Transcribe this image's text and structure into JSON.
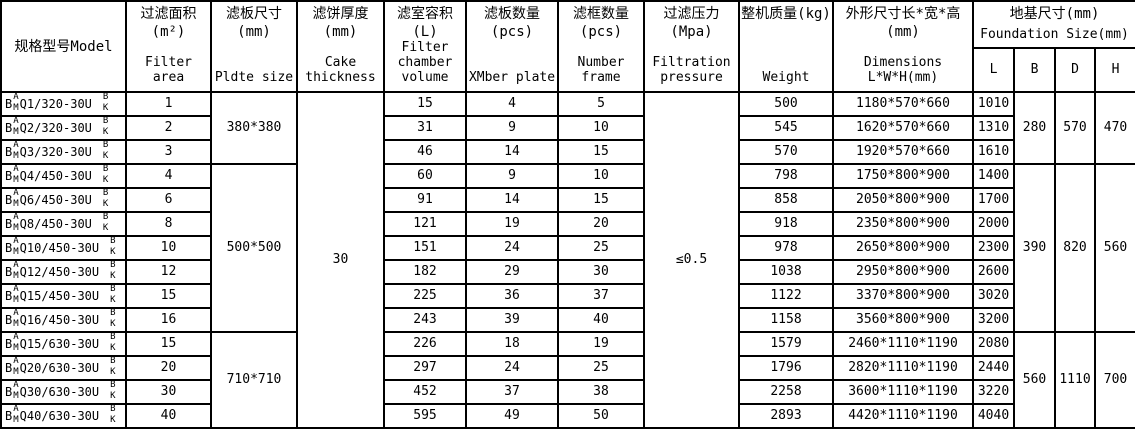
{
  "colors": {
    "border": "#000000",
    "background": "#ffffff",
    "text": "#000000"
  },
  "table": {
    "header": {
      "model_label": "规格型号Model",
      "cols": [
        {
          "zh": "过滤面积(m²)",
          "en": "Filter area"
        },
        {
          "zh": "滤板尺寸(mm)",
          "en": "Pldte size"
        },
        {
          "zh": "滤饼厚度(mm)",
          "en": "Cake thickness"
        },
        {
          "zh": "滤室容积(L)",
          "en": "Filter chamber volume"
        },
        {
          "zh": "滤板数量(pcs)",
          "en": "XMber plate"
        },
        {
          "zh": "滤框数量(pcs)",
          "en": "Number frame"
        },
        {
          "zh": "过滤压力(Mpa)",
          "en": "Filtration pressure"
        },
        {
          "zh": "整机质量(kg)",
          "en": "Weight"
        },
        {
          "zh": "外形尺寸长*宽*高(mm)",
          "en": "Dimensions L*W*H(mm)"
        }
      ],
      "foundation": {
        "zh": "地基尺寸(mm)",
        "en": "Foundation Size(mm)",
        "subcols": [
          "L",
          "B",
          "D",
          "H"
        ]
      }
    },
    "merged_cells": {
      "plate_size_groups": [
        {
          "start": 0,
          "span": 3,
          "value": "380*380"
        },
        {
          "start": 3,
          "span": 7,
          "value": "500*500"
        },
        {
          "start": 10,
          "span": 4,
          "value": "710*710"
        }
      ],
      "cake_thickness": {
        "start": 0,
        "span": 14,
        "value": "30"
      },
      "pressure": {
        "start": 0,
        "span": 14,
        "value": "≤0.5"
      },
      "foundation_groups": [
        {
          "start": 0,
          "span": 3,
          "B": "280",
          "D": "570",
          "H": "470"
        },
        {
          "start": 3,
          "span": 7,
          "B": "390",
          "D": "820",
          "H": "560"
        },
        {
          "start": 10,
          "span": 4,
          "B": "560",
          "D": "1110",
          "H": "700"
        }
      ]
    },
    "rows": [
      {
        "prefix": "B",
        "opts1": [
          "A",
          "M"
        ],
        "code": "Q1/320-30U",
        "opts2": [
          "B",
          "K"
        ],
        "area": "1",
        "volume": "15",
        "plates": "4",
        "frames": "5",
        "weight": "500",
        "dims": "1180*570*660",
        "L": "1010"
      },
      {
        "prefix": "B",
        "opts1": [
          "A",
          "M"
        ],
        "code": "Q2/320-30U",
        "opts2": [
          "B",
          "K"
        ],
        "area": "2",
        "volume": "31",
        "plates": "9",
        "frames": "10",
        "weight": "545",
        "dims": "1620*570*660",
        "L": "1310"
      },
      {
        "prefix": "B",
        "opts1": [
          "A",
          "M"
        ],
        "code": "Q3/320-30U",
        "opts2": [
          "B",
          "K"
        ],
        "area": "3",
        "volume": "46",
        "plates": "14",
        "frames": "15",
        "weight": "570",
        "dims": "1920*570*660",
        "L": "1610"
      },
      {
        "prefix": "B",
        "opts1": [
          "A",
          "M"
        ],
        "code": "Q4/450-30U",
        "opts2": [
          "B",
          "K"
        ],
        "area": "4",
        "volume": "60",
        "plates": "9",
        "frames": "10",
        "weight": "798",
        "dims": "1750*800*900",
        "L": "1400"
      },
      {
        "prefix": "B",
        "opts1": [
          "A",
          "M"
        ],
        "code": "Q6/450-30U",
        "opts2": [
          "B",
          "K"
        ],
        "area": "6",
        "volume": "91",
        "plates": "14",
        "frames": "15",
        "weight": "858",
        "dims": "2050*800*900",
        "L": "1700"
      },
      {
        "prefix": "B",
        "opts1": [
          "A",
          "M"
        ],
        "code": "Q8/450-30U",
        "opts2": [
          "B",
          "K"
        ],
        "area": "8",
        "volume": "121",
        "plates": "19",
        "frames": "20",
        "weight": "918",
        "dims": "2350*800*900",
        "L": "2000"
      },
      {
        "prefix": "B",
        "opts1": [
          "A",
          "M"
        ],
        "code": "Q10/450-30U",
        "opts2": [
          "B",
          "K"
        ],
        "area": "10",
        "volume": "151",
        "plates": "24",
        "frames": "25",
        "weight": "978",
        "dims": "2650*800*900",
        "L": "2300"
      },
      {
        "prefix": "B",
        "opts1": [
          "A",
          "M"
        ],
        "code": "Q12/450-30U",
        "opts2": [
          "B",
          "K"
        ],
        "area": "12",
        "volume": "182",
        "plates": "29",
        "frames": "30",
        "weight": "1038",
        "dims": "2950*800*900",
        "L": "2600"
      },
      {
        "prefix": "B",
        "opts1": [
          "A",
          "M"
        ],
        "code": "Q15/450-30U",
        "opts2": [
          "B",
          "K"
        ],
        "area": "15",
        "volume": "225",
        "plates": "36",
        "frames": "37",
        "weight": "1122",
        "dims": "3370*800*900",
        "L": "3020"
      },
      {
        "prefix": "B",
        "opts1": [
          "A",
          "M"
        ],
        "code": "Q16/450-30U",
        "opts2": [
          "B",
          "K"
        ],
        "area": "16",
        "volume": "243",
        "plates": "39",
        "frames": "40",
        "weight": "1158",
        "dims": "3560*800*900",
        "L": "3200"
      },
      {
        "prefix": "B",
        "opts1": [
          "A",
          "M"
        ],
        "code": "Q15/630-30U",
        "opts2": [
          "B",
          "K"
        ],
        "area": "15",
        "volume": "226",
        "plates": "18",
        "frames": "19",
        "weight": "1579",
        "dims": "2460*1110*1190",
        "L": "2080"
      },
      {
        "prefix": "B",
        "opts1": [
          "A",
          "M"
        ],
        "code": "Q20/630-30U",
        "opts2": [
          "B",
          "K"
        ],
        "area": "20",
        "volume": "297",
        "plates": "24",
        "frames": "25",
        "weight": "1796",
        "dims": "2820*1110*1190",
        "L": "2440"
      },
      {
        "prefix": "B",
        "opts1": [
          "A",
          "M"
        ],
        "code": "Q30/630-30U",
        "opts2": [
          "B",
          "K"
        ],
        "area": "30",
        "volume": "452",
        "plates": "37",
        "frames": "38",
        "weight": "2258",
        "dims": "3600*1110*1190",
        "L": "3220"
      },
      {
        "prefix": "B",
        "opts1": [
          "A",
          "M"
        ],
        "code": "Q40/630-30U",
        "opts2": [
          "B",
          "K"
        ],
        "area": "40",
        "volume": "595",
        "plates": "49",
        "frames": "50",
        "weight": "2893",
        "dims": "4420*1110*1190",
        "L": "4040"
      }
    ]
  }
}
